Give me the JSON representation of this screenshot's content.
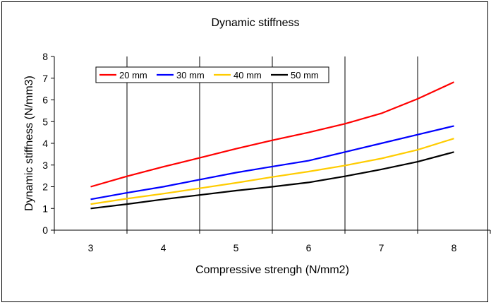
{
  "chart_data": {
    "type": "line",
    "title": "Dynamic stiffness",
    "xlabel": "Compressive strengh (N/mm2)",
    "ylabel": "Dynamic stiffness (N/mm3)",
    "x_ticks": [
      "3",
      "4",
      "5",
      "6",
      "7",
      "8"
    ],
    "y_ticks": [
      "0",
      "1",
      "2",
      "3",
      "4",
      "5",
      "6",
      "7",
      "8"
    ],
    "xlim": [
      2.5,
      8.5
    ],
    "ylim": [
      0,
      8
    ],
    "grid": "vertical",
    "legend_position": "top-left",
    "x": [
      3,
      3.5,
      4,
      4.5,
      5,
      5.5,
      6,
      6.5,
      7,
      7.5,
      8
    ],
    "series": [
      {
        "name": "20 mm",
        "color": "#ff0000",
        "values": [
          2.0,
          2.48,
          2.92,
          3.33,
          3.75,
          4.14,
          4.5,
          4.9,
          5.38,
          6.05,
          6.82
        ]
      },
      {
        "name": "30 mm",
        "color": "#0000ff",
        "values": [
          1.42,
          1.72,
          2.0,
          2.33,
          2.65,
          2.93,
          3.2,
          3.6,
          4.0,
          4.4,
          4.8
        ]
      },
      {
        "name": "40 mm",
        "color": "#ffcc00",
        "values": [
          1.2,
          1.45,
          1.68,
          1.93,
          2.18,
          2.45,
          2.7,
          2.98,
          3.3,
          3.7,
          4.22
        ]
      },
      {
        "name": "50 mm",
        "color": "#000000",
        "values": [
          1.0,
          1.2,
          1.42,
          1.62,
          1.82,
          2.0,
          2.2,
          2.48,
          2.8,
          3.15,
          3.6
        ]
      }
    ]
  }
}
